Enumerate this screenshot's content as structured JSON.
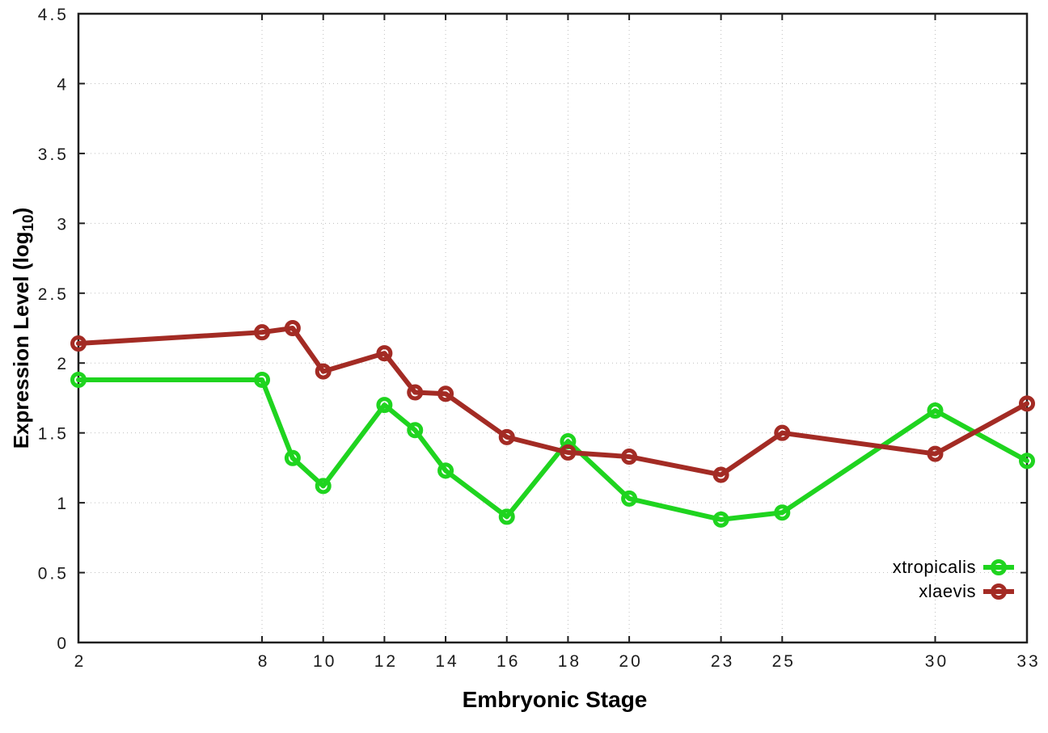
{
  "chart_data": {
    "type": "line",
    "title": "",
    "xlabel": "Embryonic Stage",
    "ylabel": "Expression Level (log10)",
    "ylabel_parts": {
      "prefix": "Expression Level (log",
      "sub": "10",
      "suffix": ")"
    },
    "xlim": [
      2,
      33
    ],
    "ylim": [
      0,
      4.5
    ],
    "xticks": [
      2,
      8,
      10,
      12,
      14,
      16,
      18,
      20,
      23,
      25,
      30,
      33
    ],
    "xtick_labels": [
      "2",
      "8",
      "10",
      "12",
      "14",
      "16",
      "18",
      "20",
      "23",
      "25",
      "30",
      "33"
    ],
    "yticks": [
      0,
      0.5,
      1,
      1.5,
      2,
      2.5,
      3,
      3.5,
      4,
      4.5
    ],
    "ytick_labels": [
      "0",
      "0.5",
      "1",
      "1.5",
      "2",
      "2.5",
      "3",
      "3.5",
      "4",
      "4.5"
    ],
    "grid": true,
    "legend_position": "inside-bottom-right",
    "x": [
      2,
      8,
      9,
      10,
      12,
      13,
      14,
      16,
      18,
      20,
      23,
      25,
      30,
      33
    ],
    "series": [
      {
        "name": "xtropicalis",
        "color": "#1fd41f",
        "values": [
          1.88,
          1.88,
          1.32,
          1.12,
          1.7,
          1.52,
          1.23,
          0.9,
          1.44,
          1.03,
          0.88,
          0.93,
          1.66,
          1.3
        ]
      },
      {
        "name": "xlaevis",
        "color": "#a32b24",
        "values": [
          2.14,
          2.22,
          2.25,
          1.94,
          2.07,
          1.79,
          1.78,
          1.47,
          1.36,
          1.33,
          1.2,
          1.5,
          1.35,
          1.71
        ]
      }
    ],
    "colors": {
      "background": "#ffffff",
      "border": "#1f1f1f",
      "grid": "#bfbfbf",
      "tick_label": "#1c1c1c"
    }
  }
}
